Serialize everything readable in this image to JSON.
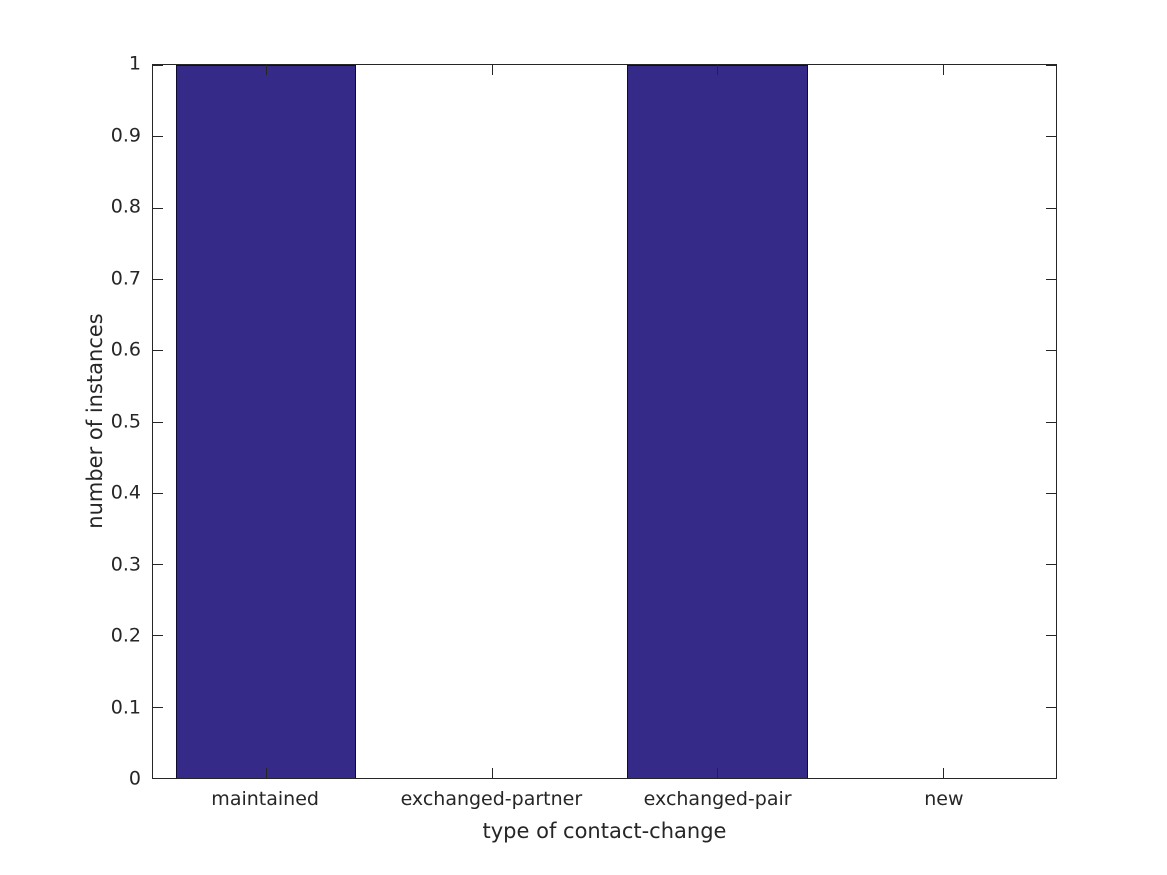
{
  "chart_data": {
    "type": "bar",
    "title": "",
    "xlabel": "type of contact-change",
    "ylabel": "number of instances",
    "categories": [
      "maintained",
      "exchanged-partner",
      "exchanged-pair",
      "new"
    ],
    "values": [
      1,
      0,
      1,
      0
    ],
    "ylim": [
      0,
      1
    ],
    "ytick_labels": [
      "0",
      "0.1",
      "0.2",
      "0.3",
      "0.4",
      "0.5",
      "0.6",
      "0.7",
      "0.8",
      "0.9",
      "1"
    ],
    "bar_width_fraction": 0.8,
    "bar_color": "#352a87",
    "bar_edge_color": "#0e0b33",
    "axis_color": "#262626",
    "text_color": "#262626",
    "grid": false,
    "legend": null,
    "box": true,
    "tick_direction": "in"
  }
}
